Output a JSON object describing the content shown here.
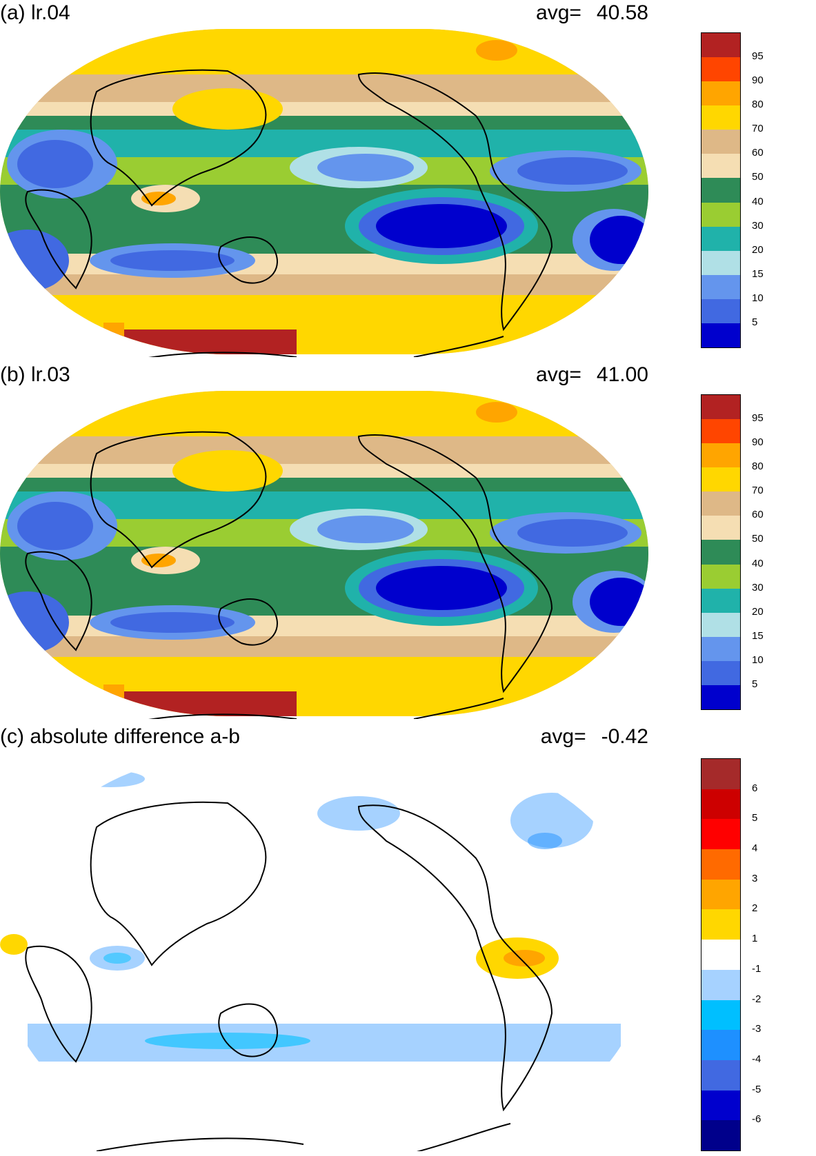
{
  "panels": [
    {
      "title": "(a) lr.04",
      "avg_label": "avg=",
      "avg_value": "40.58",
      "colorbar": {
        "colors": [
          "#b22222",
          "#ff4500",
          "#ffa500",
          "#ffd700",
          "#deb887",
          "#f5deb3",
          "#2e8b57",
          "#9acd32",
          "#20b2aa",
          "#b0e0e6",
          "#6495ed",
          "#4169e1",
          "#0000cd"
        ],
        "labels": [
          "95",
          "90",
          "80",
          "70",
          "60",
          "50",
          "40",
          "30",
          "20",
          "15",
          "10",
          "5"
        ]
      }
    },
    {
      "title": "(b) lr.03",
      "avg_label": "avg=",
      "avg_value": "41.00",
      "colorbar": {
        "colors": [
          "#b22222",
          "#ff4500",
          "#ffa500",
          "#ffd700",
          "#deb887",
          "#f5deb3",
          "#2e8b57",
          "#9acd32",
          "#20b2aa",
          "#b0e0e6",
          "#6495ed",
          "#4169e1",
          "#0000cd"
        ],
        "labels": [
          "95",
          "90",
          "80",
          "70",
          "60",
          "50",
          "40",
          "30",
          "20",
          "15",
          "10",
          "5"
        ]
      }
    },
    {
      "title": "(c) absolute difference a-b",
      "avg_label": "avg=",
      "avg_value": "-0.42",
      "colorbar": {
        "colors": [
          "#a52a2a",
          "#cd0000",
          "#ff0000",
          "#ff6a00",
          "#ffa500",
          "#ffd700",
          "#ffffff",
          "#a6d2ff",
          "#00bfff",
          "#1e90ff",
          "#4169e1",
          "#0000cd",
          "#00008b"
        ],
        "labels": [
          "6",
          "5",
          "4",
          "3",
          "2",
          "1",
          "-1",
          "-2",
          "-3",
          "-4",
          "-5",
          "-6"
        ]
      }
    }
  ]
}
